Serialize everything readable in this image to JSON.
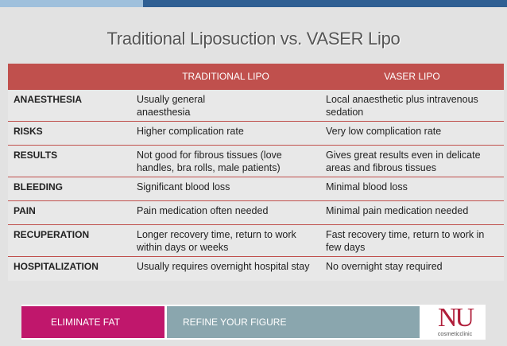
{
  "title": "Traditional Liposuction vs. VASER Lipo",
  "table": {
    "headers": [
      "",
      "TRADITIONAL LIPO",
      "VASER LIPO"
    ],
    "rows": [
      {
        "label": "ANAESTHESIA",
        "traditional": "Usually general\nanaesthesia",
        "vaser": "Local anaesthetic plus intravenous sedation"
      },
      {
        "label": "RISKS",
        "traditional": "Higher complication rate",
        "vaser": "Very low complication rate"
      },
      {
        "label": "RESULTS",
        "traditional": "Not good for fibrous tissues (love handles, bra rolls, male patients)",
        "vaser": "Gives great results even in delicate areas and fibrous tissues"
      },
      {
        "label": "BLEEDING",
        "traditional": "Significant blood loss",
        "vaser": "Minimal blood loss"
      },
      {
        "label": "PAIN",
        "traditional": "Pain medication often needed",
        "vaser": "Minimal pain medication needed"
      },
      {
        "label": "RECUPERATION",
        "traditional": "Longer recovery time, return to work within days or weeks",
        "vaser": "Fast recovery time, return to work in few days"
      },
      {
        "label": "HOSPITALIZATION",
        "traditional": "Usually requires overnight hospital stay",
        "vaser": "No overnight stay required"
      }
    ]
  },
  "footer": {
    "left_text": "ELIMINATE FAT",
    "middle_text": "REFINE YOUR FIGURE",
    "logo_text": "NU",
    "logo_sub": "cosmeticclinic"
  },
  "colors": {
    "header_red": "#c0504d",
    "footer_pink": "#c0176c",
    "footer_gray": "#8aa6ae",
    "top_bar_blue": "#2f5f93"
  }
}
